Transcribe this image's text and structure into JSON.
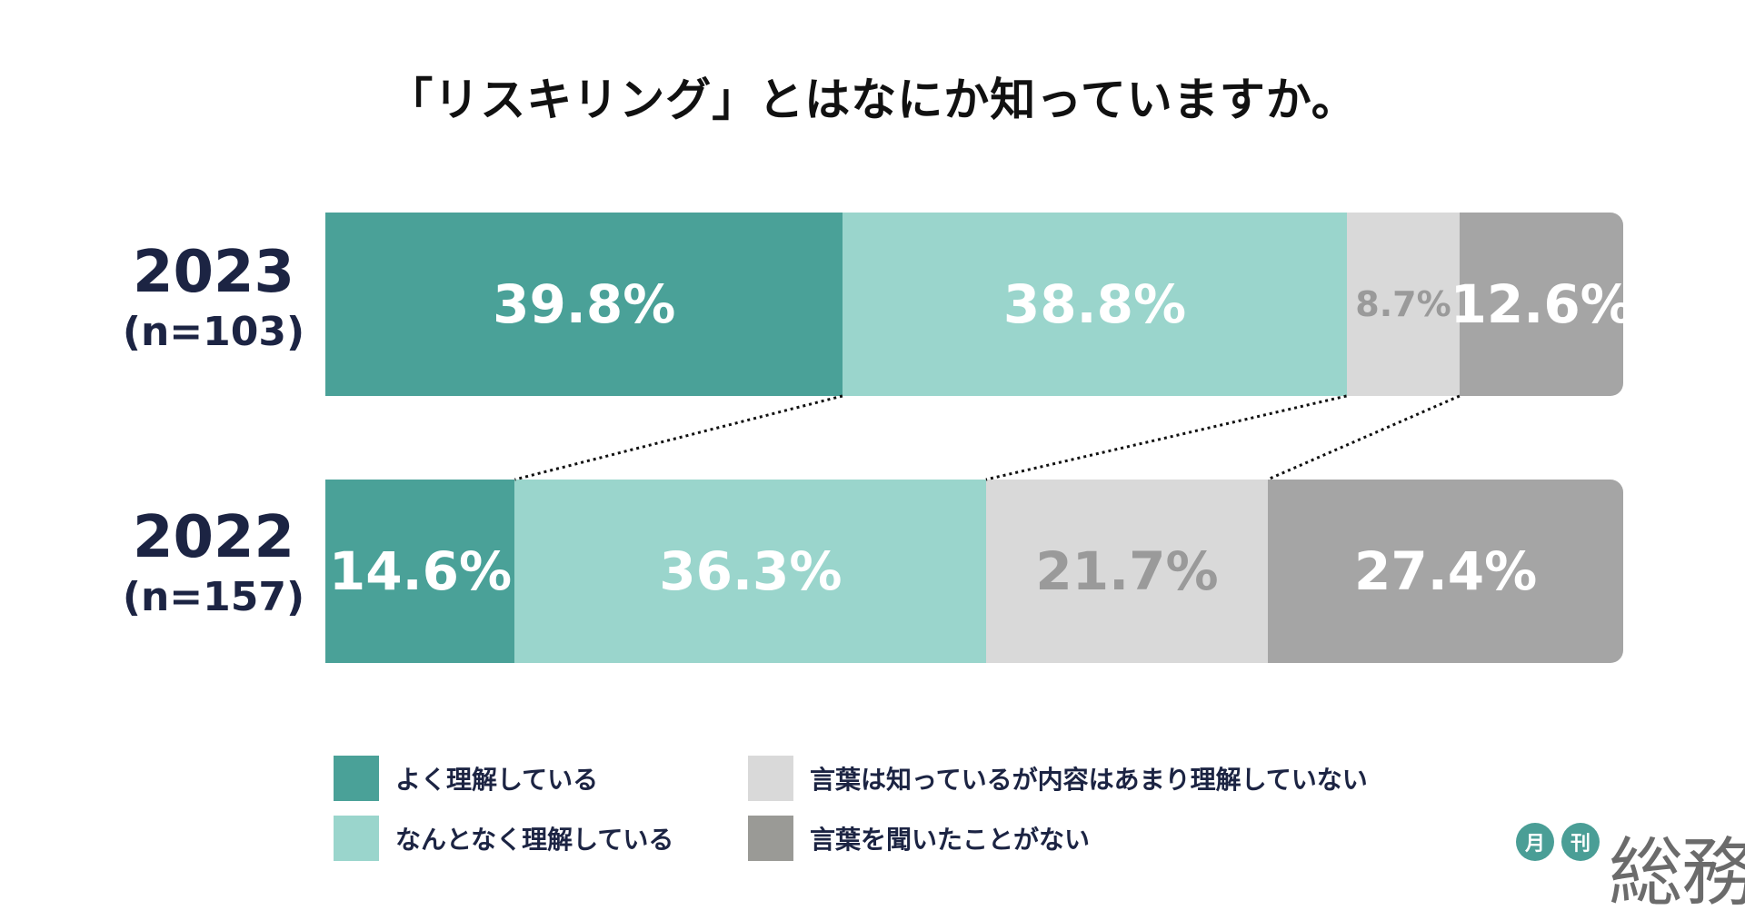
{
  "chart_data": {
    "type": "bar",
    "stacked": true,
    "orientation": "horizontal",
    "percent_scale": true,
    "title": "「リスキリング」とはなにか知っていますか。",
    "rows": [
      {
        "year": "2023",
        "n": "(n=103)"
      },
      {
        "year": "2022",
        "n": "(n=157)"
      }
    ],
    "series": [
      {
        "name": "よく理解している",
        "color": "#4aa198",
        "text_color": "#ffffff",
        "values": [
          39.8,
          14.6
        ],
        "labels": [
          "39.8%",
          "14.6%"
        ]
      },
      {
        "name": "なんとなく理解している",
        "color": "#9ad5cc",
        "text_color": "#ffffff",
        "values": [
          38.8,
          36.3
        ],
        "labels": [
          "38.8%",
          "36.3%"
        ]
      },
      {
        "name": "言葉は知っているが内容はあまり理解していない",
        "color": "#d9d9d9",
        "text_color": "#9a9a9a",
        "values": [
          8.7,
          21.7
        ],
        "labels": [
          "8.7%",
          "21.7%"
        ]
      },
      {
        "name": "言葉を聞いたことがない",
        "color": "#a5a5a5",
        "text_color": "#ffffff",
        "values": [
          12.6,
          27.4
        ],
        "labels": [
          "12.6%",
          "27.4%"
        ]
      }
    ],
    "legend_swatch_colors": [
      "#4aa198",
      "#9ad5cc",
      "#d9d9d9",
      "#9a9a96"
    ],
    "connectors": "dotted lines between series boundaries of the two bars"
  },
  "logo": {
    "circle1": "月",
    "circle2": "刊",
    "word": "総務",
    "color": "#4a9e96"
  }
}
